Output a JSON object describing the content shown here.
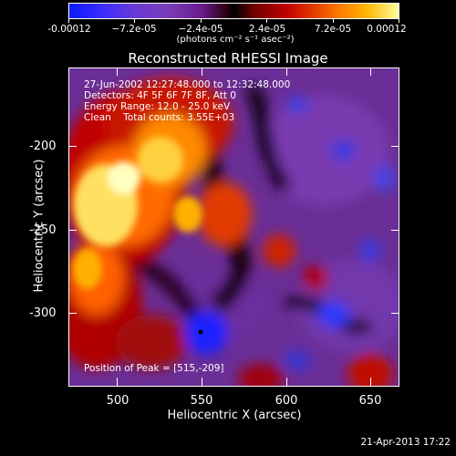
{
  "colorbar": {
    "tick_labels": [
      "-0.00012",
      "−7.2e-05",
      "−2.4e-05",
      "2.4e-05",
      "7.2e-05",
      "0.00012"
    ],
    "unit_label": "(photons cm⁻² s⁻¹ asec⁻²)"
  },
  "title": "Reconstructed RHESSI Image",
  "info": {
    "time_range": "27-Jun-2002 12:27:48.000 to 12:32:48.000",
    "detectors": "Detectors: 4F 5F 6F 7F 8F, Att 0",
    "energy_range": "Energy Range: 12.0 - 25.0 keV",
    "clean_counts": "Clean    Total counts: 3.55E+03"
  },
  "peak_label": "Position of Peak = [515,-209]",
  "x_axis": {
    "title": "Heliocentric X (arcsec)",
    "ticks": [
      "500",
      "550",
      "600",
      "650"
    ]
  },
  "y_axis": {
    "title": "Heliocentric Y (arcsec)",
    "ticks": [
      "-200",
      "-250",
      "-300"
    ]
  },
  "timestamp": "21-Apr-2013 17:22"
}
